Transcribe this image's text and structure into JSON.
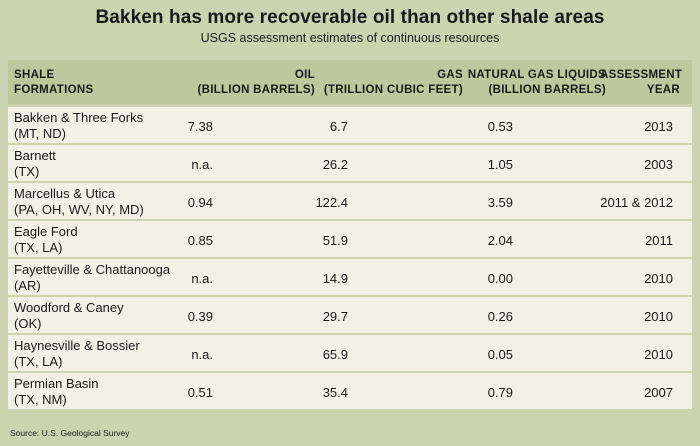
{
  "title": "Bakken has more recoverable oil than other shale areas",
  "subtitle": "USGS assessment estimates of continuous resources",
  "header": {
    "formations_1": "SHALE",
    "formations_2": "FORMATIONS",
    "oil_1": "OIL",
    "oil_2": "(BILLION BARRELS)",
    "gas_1": "GAS",
    "gas_2": "(TRILLION CUBIC FEET)",
    "ngl_1": "NATURAL GAS LIQUIDS",
    "ngl_2": "(BILLION BARRELS)",
    "year_1": "ASSESSMENT",
    "year_2": "YEAR"
  },
  "rows": [
    {
      "name": "Bakken & Three Forks",
      "state": "(MT, ND)",
      "oil": "7.38",
      "gas": "6.7",
      "ngl": "0.53",
      "year": "2013"
    },
    {
      "name": "Barnett",
      "state": "(TX)",
      "oil": "n.a.",
      "gas": "26.2",
      "ngl": "1.05",
      "year": "2003"
    },
    {
      "name": "Marcellus & Utica",
      "state": "(PA, OH, WV, NY, MD)",
      "oil": "0.94",
      "gas": "122.4",
      "ngl": "3.59",
      "year": "2011 & 2012"
    },
    {
      "name": "Eagle Ford",
      "state": "(TX, LA)",
      "oil": "0.85",
      "gas": "51.9",
      "ngl": "2.04",
      "year": "2011"
    },
    {
      "name": "Fayetteville & Chattanooga",
      "state": "(AR)",
      "oil": "n.a.",
      "gas": "14.9",
      "ngl": "0.00",
      "year": "2010"
    },
    {
      "name": "Woodford & Caney",
      "state": "(OK)",
      "oil": "0.39",
      "gas": "29.7",
      "ngl": "0.26",
      "year": "2010"
    },
    {
      "name": "Haynesville & Bossier",
      "state": "(TX, LA)",
      "oil": "n.a.",
      "gas": "65.9",
      "ngl": "0.05",
      "year": "2010"
    },
    {
      "name": "Permian Basin",
      "state": "(TX, NM)",
      "oil": "0.51",
      "gas": "35.4",
      "ngl": "0.79",
      "year": "2007"
    }
  ],
  "source": "Source: U.S. Geological Survey",
  "colors": {
    "background": "#cbd3b1",
    "header": "#bec89d",
    "row": "#f3f1e6"
  }
}
